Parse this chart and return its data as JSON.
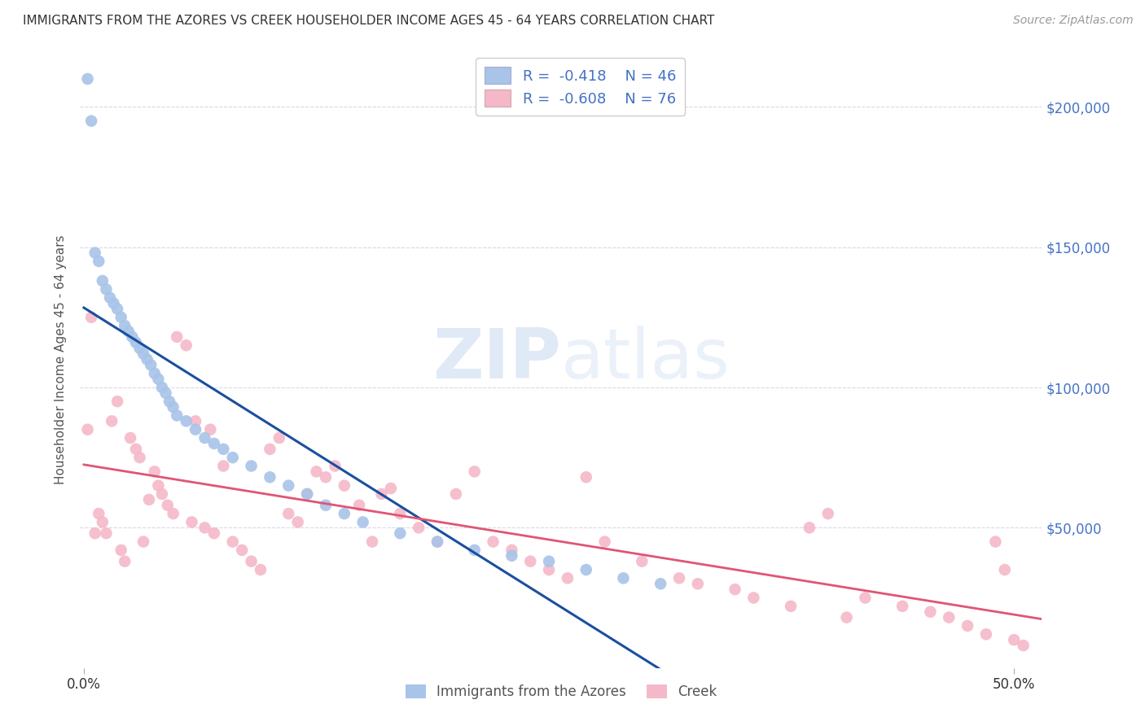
{
  "title": "IMMIGRANTS FROM THE AZORES VS CREEK HOUSEHOLDER INCOME AGES 45 - 64 YEARS CORRELATION CHART",
  "source": "Source: ZipAtlas.com",
  "ylabel": "Householder Income Ages 45 - 64 years",
  "watermark_zip": "ZIP",
  "watermark_atlas": "atlas",
  "legend_label1": "Immigrants from the Azores",
  "legend_label2": "Creek",
  "r1": "-0.418",
  "n1": "46",
  "r2": "-0.608",
  "n2": "76",
  "color_blue_scatter": "#a8c4e8",
  "color_pink_scatter": "#f5b8c8",
  "color_blue_line": "#1a4fa0",
  "color_pink_line": "#e05575",
  "color_blue_text": "#4472c4",
  "color_right_axis": "#4472c4",
  "ylim_min": 0,
  "ylim_max": 220000,
  "xlim_min": -0.002,
  "xlim_max": 0.515,
  "yticks": [
    50000,
    100000,
    150000,
    200000
  ],
  "ytick_labels": [
    "$50,000",
    "$100,000",
    "$150,000",
    "$200,000"
  ],
  "grid_color": "#d8d8e8",
  "background_color": "#ffffff",
  "blue_x": [
    0.002,
    0.004,
    0.006,
    0.008,
    0.01,
    0.012,
    0.014,
    0.016,
    0.018,
    0.02,
    0.022,
    0.024,
    0.026,
    0.028,
    0.03,
    0.032,
    0.034,
    0.036,
    0.038,
    0.04,
    0.042,
    0.044,
    0.046,
    0.048,
    0.05,
    0.055,
    0.06,
    0.065,
    0.07,
    0.075,
    0.08,
    0.09,
    0.1,
    0.11,
    0.12,
    0.13,
    0.14,
    0.15,
    0.17,
    0.19,
    0.21,
    0.23,
    0.25,
    0.27,
    0.29,
    0.31
  ],
  "blue_y": [
    210000,
    195000,
    148000,
    145000,
    138000,
    135000,
    132000,
    130000,
    128000,
    125000,
    122000,
    120000,
    118000,
    116000,
    114000,
    112000,
    110000,
    108000,
    105000,
    103000,
    100000,
    98000,
    95000,
    93000,
    90000,
    88000,
    85000,
    82000,
    80000,
    78000,
    75000,
    72000,
    68000,
    65000,
    62000,
    58000,
    55000,
    52000,
    48000,
    45000,
    42000,
    40000,
    38000,
    35000,
    32000,
    30000
  ],
  "pink_x": [
    0.002,
    0.004,
    0.006,
    0.008,
    0.01,
    0.012,
    0.015,
    0.018,
    0.02,
    0.022,
    0.025,
    0.028,
    0.03,
    0.032,
    0.035,
    0.038,
    0.04,
    0.042,
    0.045,
    0.048,
    0.05,
    0.055,
    0.058,
    0.06,
    0.065,
    0.068,
    0.07,
    0.075,
    0.08,
    0.085,
    0.09,
    0.095,
    0.1,
    0.105,
    0.11,
    0.115,
    0.12,
    0.125,
    0.13,
    0.135,
    0.14,
    0.148,
    0.155,
    0.16,
    0.165,
    0.17,
    0.18,
    0.19,
    0.2,
    0.21,
    0.22,
    0.23,
    0.24,
    0.25,
    0.26,
    0.27,
    0.28,
    0.3,
    0.32,
    0.33,
    0.35,
    0.36,
    0.38,
    0.39,
    0.4,
    0.41,
    0.42,
    0.44,
    0.455,
    0.465,
    0.475,
    0.485,
    0.49,
    0.495,
    0.5,
    0.505
  ],
  "pink_y": [
    85000,
    125000,
    48000,
    55000,
    52000,
    48000,
    88000,
    95000,
    42000,
    38000,
    82000,
    78000,
    75000,
    45000,
    60000,
    70000,
    65000,
    62000,
    58000,
    55000,
    118000,
    115000,
    52000,
    88000,
    50000,
    85000,
    48000,
    72000,
    45000,
    42000,
    38000,
    35000,
    78000,
    82000,
    55000,
    52000,
    62000,
    70000,
    68000,
    72000,
    65000,
    58000,
    45000,
    62000,
    64000,
    55000,
    50000,
    45000,
    62000,
    70000,
    45000,
    42000,
    38000,
    35000,
    32000,
    68000,
    45000,
    38000,
    32000,
    30000,
    28000,
    25000,
    22000,
    50000,
    55000,
    18000,
    25000,
    22000,
    20000,
    18000,
    15000,
    12000,
    45000,
    35000,
    10000,
    8000
  ]
}
